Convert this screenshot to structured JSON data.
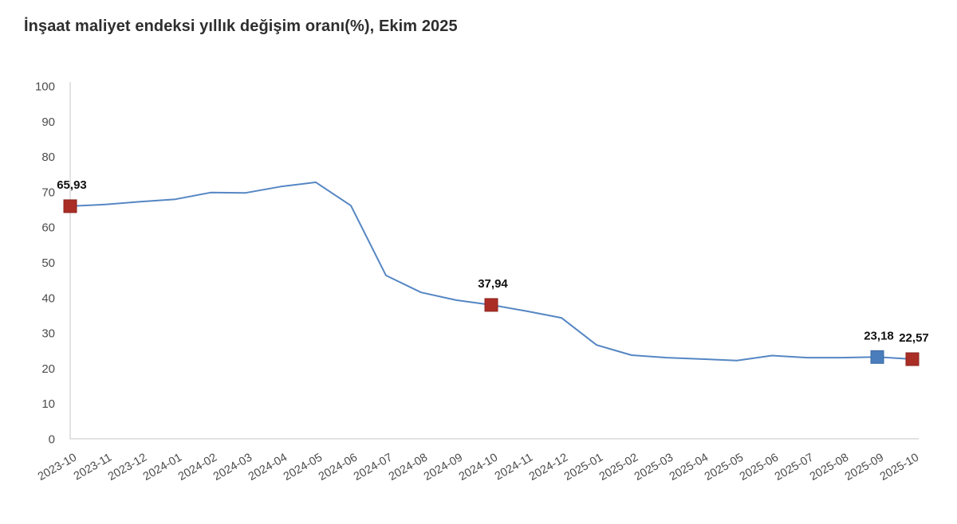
{
  "header": {
    "title": "İnşaat maliyet endeksi yıllık değişim oranı(%), Ekim 2025"
  },
  "colors": {
    "background": "#ffffff",
    "title_text": "#2e2e2e",
    "tick_text": "#4c4c4c",
    "axis": "#d9d9d9",
    "line": "#5586c3",
    "marker_red": "#aa2e26",
    "marker_red_stroke": "#8c241d",
    "marker_blue": "#4a7dbb",
    "marker_blue_stroke": "#3a6aa5",
    "data_label_text": "#101010"
  },
  "chart_data": {
    "type": "line",
    "title": "İnşaat maliyet endeksi yıllık değişim oranı(%), Ekim 2025",
    "x": [
      "2023-10",
      "2023-11",
      "2023-12",
      "2024-01",
      "2024-02",
      "2024-03",
      "2024-04",
      "2024-05",
      "2024-06",
      "2024-07",
      "2024-08",
      "2024-09",
      "2024-10",
      "2024-11",
      "2024-12",
      "2025-01",
      "2025-02",
      "2025-03",
      "2025-04",
      "2025-05",
      "2025-06",
      "2025-07",
      "2025-08",
      "2025-09",
      "2025-10"
    ],
    "series": [
      {
        "name": "İnşaat maliyet endeksi yıllık değişim oranı (%)",
        "values": [
          65.93,
          66.4,
          67.2,
          67.9,
          69.8,
          69.7,
          71.5,
          72.7,
          66.1,
          46.3,
          41.5,
          39.3,
          37.94,
          36.2,
          34.3,
          26.6,
          23.7,
          23.0,
          22.6,
          22.2,
          23.6,
          23.0,
          23.0,
          23.18,
          22.57
        ]
      }
    ],
    "ylim": [
      0,
      100
    ],
    "ytick_step": 10,
    "yticks": [
      0,
      10,
      20,
      30,
      40,
      50,
      60,
      70,
      80,
      90,
      100
    ],
    "grid": false,
    "legend_position": "none",
    "xlabel": "",
    "ylabel": "",
    "annotated_points": [
      {
        "x": "2023-10",
        "value": 65.93,
        "label": "65,93",
        "marker": "red"
      },
      {
        "x": "2024-10",
        "value": 37.94,
        "label": "37,94",
        "marker": "red"
      },
      {
        "x": "2025-09",
        "value": 23.18,
        "label": "23,18",
        "marker": "blue"
      },
      {
        "x": "2025-10",
        "value": 22.57,
        "label": "22,57",
        "marker": "red"
      }
    ]
  }
}
